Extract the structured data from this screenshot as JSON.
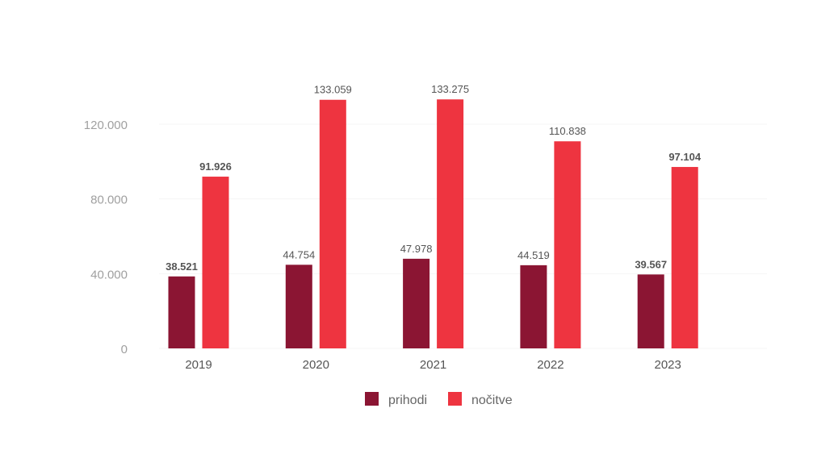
{
  "chart_data": {
    "type": "bar",
    "title": "",
    "xlabel": "",
    "ylabel": "",
    "categories": [
      "2019",
      "2020",
      "2021",
      "2022",
      "2023"
    ],
    "series": [
      {
        "name": "prihodi",
        "color": "#8B1533",
        "values": [
          38521,
          44754,
          47978,
          44519,
          39567
        ],
        "labels": [
          "38.521",
          "44.754",
          "47.978",
          "44.519",
          "39.567"
        ],
        "bold": [
          true,
          false,
          false,
          false,
          true
        ]
      },
      {
        "name": "nočitve",
        "color": "#EE3440",
        "values": [
          91926,
          133059,
          133275,
          110838,
          97104
        ],
        "labels": [
          "91.926",
          "133.059",
          "133.275",
          "110.838",
          "97.104"
        ],
        "bold": [
          true,
          false,
          false,
          false,
          true
        ]
      }
    ],
    "ylim": [
      0,
      120000
    ],
    "yticks": [
      0,
      40000,
      80000,
      120000
    ],
    "ytick_labels": [
      "0",
      "40.000",
      "80.000",
      "120.000"
    ],
    "grid": true,
    "legend": "bottom-center"
  }
}
